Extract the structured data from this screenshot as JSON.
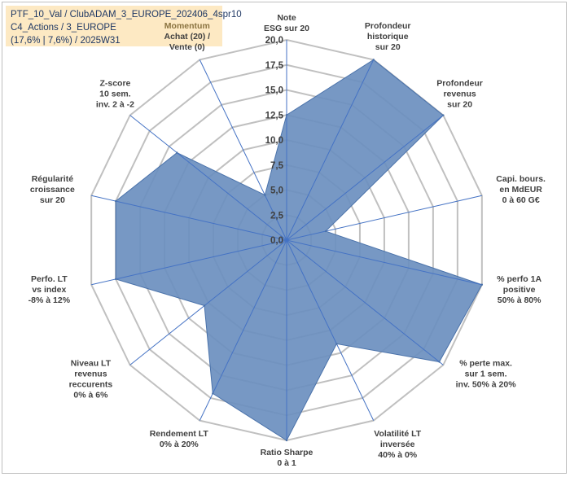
{
  "header": {
    "line1": "PTF_10_Val / ClubADAM_3_EUROPE_202406_4spr10",
    "line2": "C4_Actions / 3_EUROPE",
    "line3": "(17,6% | 7,6%) / 2025W31"
  },
  "colors": {
    "fill": "#6b8fbf",
    "stroke": "#4a72aa",
    "spokes": "#4472c4",
    "grid": "#c0c0c0",
    "highlight_label": "#8a7340"
  },
  "chart_data": {
    "type": "radar",
    "rmin": 0,
    "rmax": 20,
    "tick_step": 2.5,
    "ticks": [
      "0,0",
      "2,5",
      "5,0",
      "7,5",
      "10,0",
      "12,5",
      "15,0",
      "17,5",
      "20,0"
    ],
    "grid": true,
    "axes": [
      {
        "label": [
          "Note",
          "ESG sur 20"
        ],
        "value": 12.5
      },
      {
        "label": [
          "Profondeur",
          "historique",
          "sur 20"
        ],
        "value": 20
      },
      {
        "label": [
          "Profondeur",
          "revenus",
          "sur 20"
        ],
        "value": 20
      },
      {
        "label": [
          "Capi. bours.",
          "en MdEUR",
          "0 à 60 G€"
        ],
        "value": 4
      },
      {
        "label": [
          "% perfo 1A",
          "positive",
          "50% à 80%"
        ],
        "value": 20
      },
      {
        "label": [
          "% perte max.",
          "sur 1 sem.",
          "inv. 50% à 20%"
        ],
        "value": 19.5
      },
      {
        "label": [
          "Volatilité LT",
          "inversée",
          "40% à 0%"
        ],
        "value": 11.5
      },
      {
        "label": [
          "Ratio Sharpe",
          "0 à 1"
        ],
        "value": 20
      },
      {
        "label": [
          "Rendement LT",
          "0% à 20%"
        ],
        "value": 17
      },
      {
        "label": [
          "Niveau LT",
          "revenus",
          "reccurents",
          "0% à 6%"
        ],
        "value": 10.5
      },
      {
        "label": [
          "Perfo. LT",
          "vs index",
          "-8% à 12%"
        ],
        "value": 17.5
      },
      {
        "label": [
          "Régularité",
          "croissance",
          "sur 20"
        ],
        "value": 17.5
      },
      {
        "label": [
          "Z-score",
          "10 sem.",
          "inv. 2 à -2"
        ],
        "value": 14
      },
      {
        "label": [
          "Momentum",
          "Achat (20) /",
          "Vente (0)"
        ],
        "value": 5
      }
    ]
  }
}
